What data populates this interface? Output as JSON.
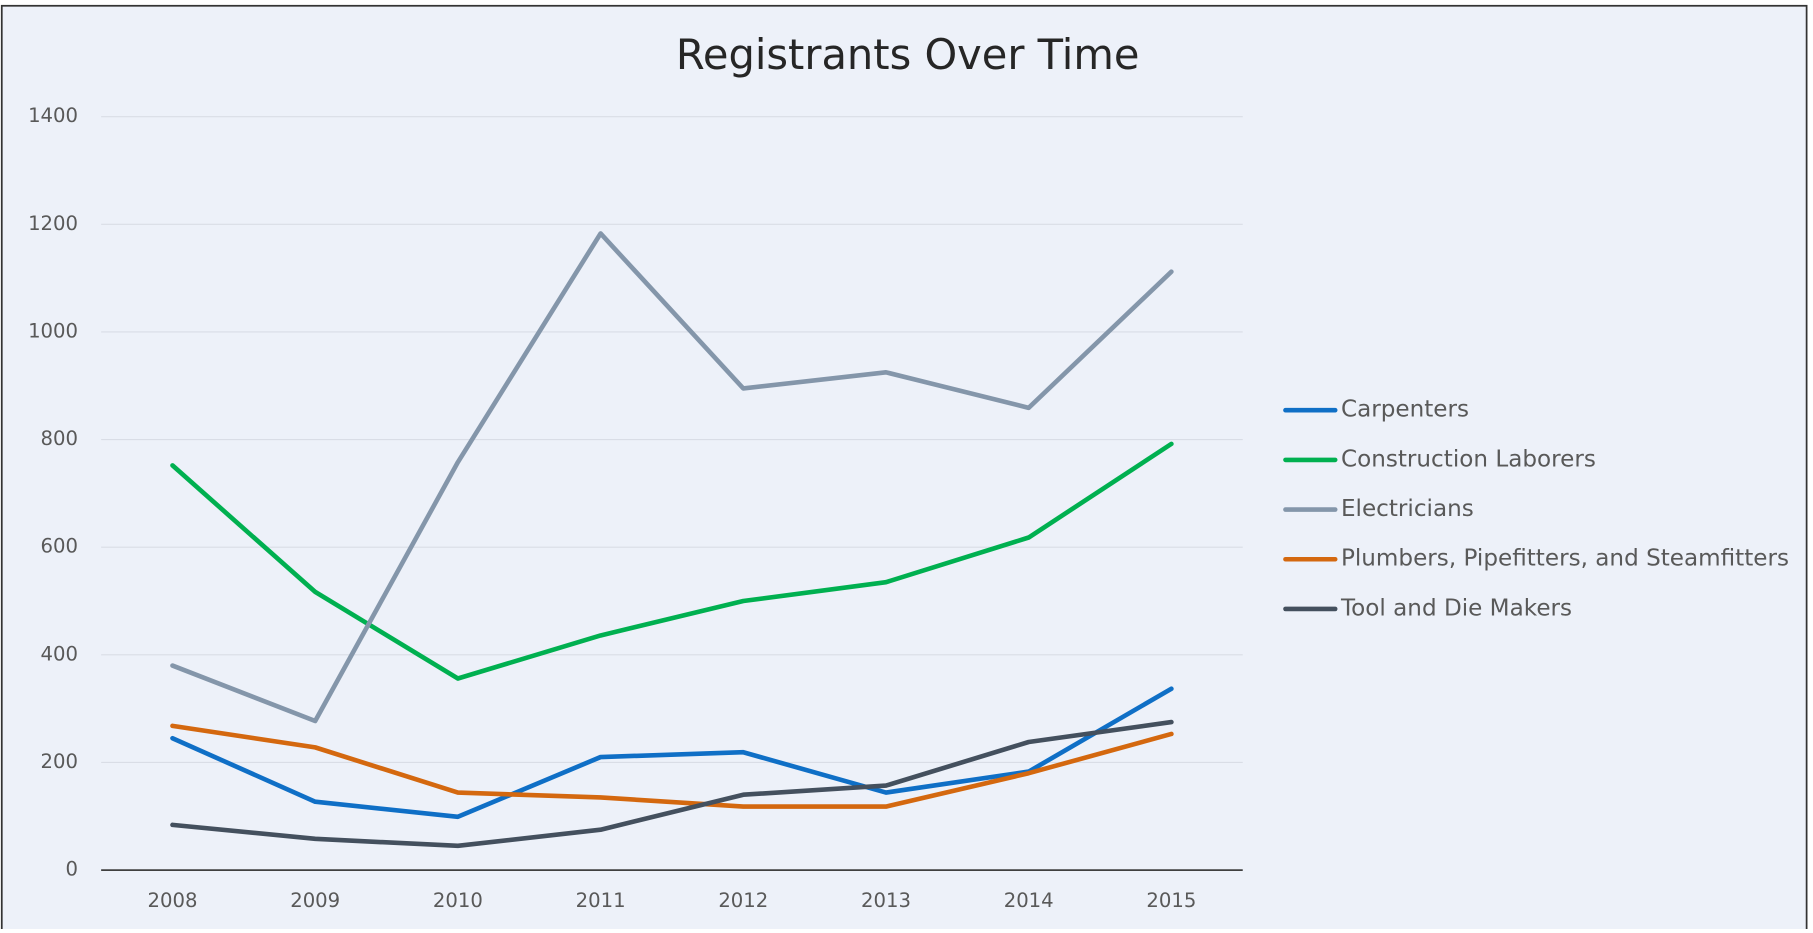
{
  "chart_data": {
    "type": "line",
    "title": "Registrants Over Time",
    "categories": [
      "2008",
      "2009",
      "2010",
      "2011",
      "2012",
      "2013",
      "2014",
      "2015"
    ],
    "series": [
      {
        "name": "Carpenters",
        "color": "#0f6fc6",
        "values": [
          245,
          127,
          99,
          210,
          219,
          144,
          183,
          337
        ]
      },
      {
        "name": "Construction Laborers",
        "color": "#00b050",
        "values": [
          752,
          517,
          356,
          436,
          500,
          535,
          618,
          792
        ]
      },
      {
        "name": "Electricians",
        "color": "#8496aa",
        "values": [
          380,
          277,
          758,
          1183,
          895,
          925,
          859,
          1112
        ]
      },
      {
        "name": "Plumbers, Pipefitters, and Steamfitters",
        "color": "#d4680f",
        "values": [
          268,
          228,
          144,
          135,
          118,
          118,
          180,
          253
        ]
      },
      {
        "name": "Tool and Die Makers",
        "color": "#44505e",
        "values": [
          84,
          58,
          45,
          75,
          140,
          157,
          238,
          275
        ]
      }
    ],
    "ylim": [
      0,
      1400
    ],
    "yticks": [
      0,
      200,
      400,
      600,
      800,
      1000,
      1200,
      1400
    ],
    "grid": true,
    "legend": "right"
  }
}
